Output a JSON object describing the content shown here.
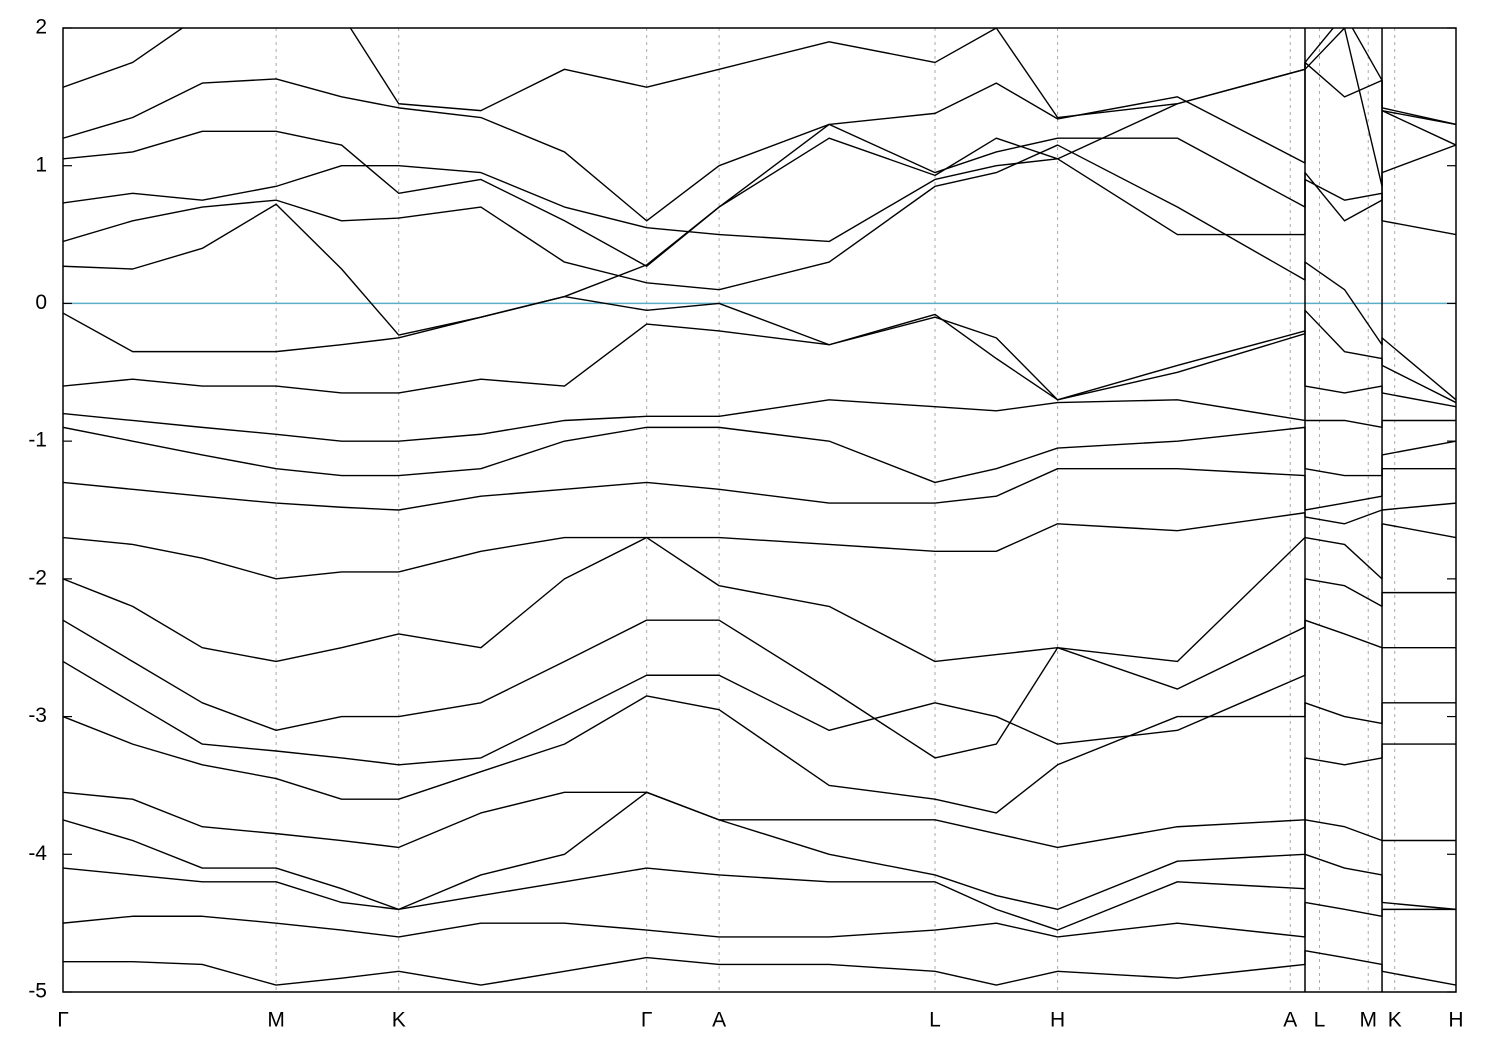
{
  "chart_data": {
    "type": "line",
    "x": [
      0,
      0.05,
      0.1,
      0.153,
      0.2,
      0.241,
      0.3,
      0.36,
      0.419,
      0.471,
      0.55,
      0.626,
      0.67,
      0.714,
      0.8,
      0.8916,
      0.8916,
      0.92,
      0.9469,
      0.9469,
      1.0
    ],
    "xlim": [
      0,
      1
    ],
    "xticks": [
      {
        "value": 0,
        "label": "Γ"
      },
      {
        "value": 0.153,
        "label": "M"
      },
      {
        "value": 0.241,
        "label": "K"
      },
      {
        "value": 0.419,
        "label": "Γ"
      },
      {
        "value": 0.471,
        "label": "A"
      },
      {
        "value": 0.626,
        "label": "L"
      },
      {
        "value": 0.714,
        "label": "H"
      },
      {
        "value": 0.881,
        "label": "A"
      },
      {
        "value": 0.902,
        "label": "L"
      },
      {
        "value": 0.937,
        "label": "M"
      },
      {
        "value": 0.956,
        "label": "K"
      },
      {
        "value": 1.0,
        "label": "H"
      }
    ],
    "ylim": [
      -5,
      2
    ],
    "yticks": [
      2,
      1,
      0,
      -1,
      -2,
      -3,
      -4,
      -5
    ],
    "x_grid": true,
    "breaks": [
      0.8916,
      0.9469
    ],
    "hline": 0,
    "hline_color": "#5aaec8",
    "color": "#000000",
    "series": [
      {
        "values": [
          1.57,
          1.75,
          2.1,
          2.3,
          2.1,
          1.45,
          1.4,
          1.7,
          1.57,
          1.7,
          1.9,
          1.75,
          2.0,
          1.35,
          1.45,
          1.7,
          1.75,
          2.1,
          1.62,
          1.42,
          1.3
        ]
      },
      {
        "values": [
          1.2,
          1.35,
          1.6,
          1.63,
          1.5,
          1.42,
          1.35,
          1.1,
          0.6,
          1.0,
          1.3,
          1.38,
          1.6,
          1.34,
          1.5,
          1.02,
          1.7,
          2.0,
          0.85,
          1.4,
          1.15
        ]
      },
      {
        "values": [
          1.05,
          1.1,
          1.25,
          1.25,
          1.15,
          0.8,
          0.9,
          0.6,
          0.27,
          0.7,
          1.3,
          0.95,
          1.1,
          1.2,
          1.2,
          0.7,
          0.95,
          0.6,
          0.75,
          0.95,
          1.15
        ]
      },
      {
        "values": [
          0.73,
          0.8,
          0.75,
          0.85,
          1.0,
          1.0,
          0.95,
          0.7,
          0.55,
          0.5,
          0.45,
          0.9,
          1.0,
          1.05,
          0.5,
          0.5,
          0.9,
          0.75,
          0.8,
          0.6,
          0.5
        ]
      },
      {
        "values": [
          0.45,
          0.6,
          0.7,
          0.75,
          0.6,
          0.62,
          0.7,
          0.3,
          0.15,
          0.1,
          0.3,
          0.85,
          0.95,
          1.15,
          0.7,
          0.17,
          0.3,
          0.1,
          -0.3,
          -0.25,
          -0.7
        ]
      },
      {
        "values": [
          0.27,
          0.25,
          0.4,
          0.72,
          0.25,
          -0.23,
          -0.1,
          0.05,
          -0.05,
          0.0,
          -0.3,
          -0.08,
          -0.4,
          -0.7,
          -0.5,
          -0.22,
          -0.05,
          -0.35,
          -0.4,
          -0.45,
          -0.72
        ]
      },
      {
        "values": [
          -0.07,
          -0.35,
          -0.35,
          -0.35,
          -0.3,
          -0.25,
          -0.1,
          0.05,
          0.28,
          0.7,
          1.2,
          0.93,
          1.2,
          1.05,
          1.45,
          1.7,
          1.75,
          1.5,
          1.62,
          1.4,
          1.3
        ]
      },
      {
        "values": [
          -0.6,
          -0.55,
          -0.6,
          -0.6,
          -0.65,
          -0.65,
          -0.55,
          -0.6,
          -0.15,
          -0.2,
          -0.3,
          -0.1,
          -0.25,
          -0.7,
          -0.45,
          -0.2,
          -0.6,
          -0.65,
          -0.6,
          -0.65,
          -0.75
        ]
      },
      {
        "values": [
          -0.8,
          -0.85,
          -0.9,
          -0.95,
          -1.0,
          -1.0,
          -0.95,
          -0.85,
          -0.82,
          -0.82,
          -0.7,
          -0.75,
          -0.78,
          -0.72,
          -0.7,
          -0.85,
          -0.85,
          -0.85,
          -0.9,
          -0.85,
          -0.85
        ]
      },
      {
        "values": [
          -0.9,
          -1.0,
          -1.1,
          -1.2,
          -1.25,
          -1.25,
          -1.2,
          -1.0,
          -0.9,
          -0.9,
          -1.0,
          -1.3,
          -1.2,
          -1.05,
          -1.0,
          -0.9,
          -1.2,
          -1.25,
          -1.25,
          -1.1,
          -1.0
        ]
      },
      {
        "values": [
          -1.3,
          -1.35,
          -1.4,
          -1.45,
          -1.48,
          -1.5,
          -1.4,
          -1.35,
          -1.3,
          -1.35,
          -1.45,
          -1.45,
          -1.4,
          -1.2,
          -1.2,
          -1.25,
          -1.5,
          -1.45,
          -1.4,
          -1.2,
          -1.2
        ]
      },
      {
        "values": [
          -1.7,
          -1.75,
          -1.85,
          -2.0,
          -1.95,
          -1.95,
          -1.8,
          -1.7,
          -1.7,
          -1.7,
          -1.75,
          -1.8,
          -1.8,
          -1.6,
          -1.65,
          -1.52,
          -1.55,
          -1.6,
          -1.5,
          -1.5,
          -1.45
        ]
      },
      {
        "values": [
          -2.0,
          -2.2,
          -2.5,
          -2.6,
          -2.5,
          -2.4,
          -2.5,
          -2.0,
          -1.7,
          -2.05,
          -2.2,
          -2.6,
          -2.55,
          -2.5,
          -2.6,
          -1.7,
          -1.7,
          -1.75,
          -2.0,
          -1.6,
          -1.7
        ]
      },
      {
        "values": [
          -2.3,
          -2.6,
          -2.9,
          -3.1,
          -3.0,
          -3.0,
          -2.9,
          -2.6,
          -2.3,
          -2.3,
          -2.8,
          -3.3,
          -3.2,
          -2.5,
          -2.8,
          -2.35,
          -2.0,
          -2.05,
          -2.2,
          -2.1,
          -2.1
        ]
      },
      {
        "values": [
          -2.6,
          -2.9,
          -3.2,
          -3.25,
          -3.3,
          -3.35,
          -3.3,
          -3.0,
          -2.7,
          -2.7,
          -3.1,
          -2.9,
          -3.0,
          -3.2,
          -3.1,
          -2.7,
          -2.3,
          -2.4,
          -2.5,
          -2.5,
          -2.5
        ]
      },
      {
        "values": [
          -3.0,
          -3.2,
          -3.35,
          -3.45,
          -3.6,
          -3.6,
          -3.4,
          -3.2,
          -2.85,
          -2.95,
          -3.5,
          -3.6,
          -3.7,
          -3.35,
          -3.0,
          -3.0,
          -2.9,
          -3.0,
          -3.05,
          -2.9,
          -2.9
        ]
      },
      {
        "values": [
          -3.55,
          -3.6,
          -3.8,
          -3.85,
          -3.9,
          -3.95,
          -3.7,
          -3.55,
          -3.55,
          -3.75,
          -3.75,
          -3.75,
          -3.85,
          -3.95,
          -3.8,
          -3.75,
          -3.3,
          -3.35,
          -3.3,
          -3.2,
          -3.2
        ]
      },
      {
        "values": [
          -3.75,
          -3.9,
          -4.1,
          -4.1,
          -4.25,
          -4.4,
          -4.15,
          -4.0,
          -3.55,
          -3.75,
          -4.0,
          -4.15,
          -4.3,
          -4.4,
          -4.05,
          -4.0,
          -3.75,
          -3.8,
          -3.9,
          -3.9,
          -3.9
        ]
      },
      {
        "values": [
          -4.1,
          -4.15,
          -4.2,
          -4.2,
          -4.35,
          -4.4,
          -4.3,
          -4.2,
          -4.1,
          -4.15,
          -4.2,
          -4.2,
          -4.4,
          -4.55,
          -4.2,
          -4.25,
          -4.0,
          -4.1,
          -4.15,
          -4.35,
          -4.4
        ]
      },
      {
        "values": [
          -4.5,
          -4.45,
          -4.45,
          -4.5,
          -4.55,
          -4.6,
          -4.5,
          -4.5,
          -4.55,
          -4.6,
          -4.6,
          -4.55,
          -4.5,
          -4.6,
          -4.5,
          -4.6,
          -4.35,
          -4.4,
          -4.45,
          -4.4,
          -4.4
        ]
      },
      {
        "values": [
          -4.78,
          -4.78,
          -4.8,
          -4.95,
          -4.9,
          -4.85,
          -4.95,
          -4.85,
          -4.75,
          -4.8,
          -4.8,
          -4.85,
          -4.95,
          -4.85,
          -4.9,
          -4.8,
          -4.7,
          -4.75,
          -4.8,
          -4.85,
          -4.95
        ]
      }
    ]
  }
}
